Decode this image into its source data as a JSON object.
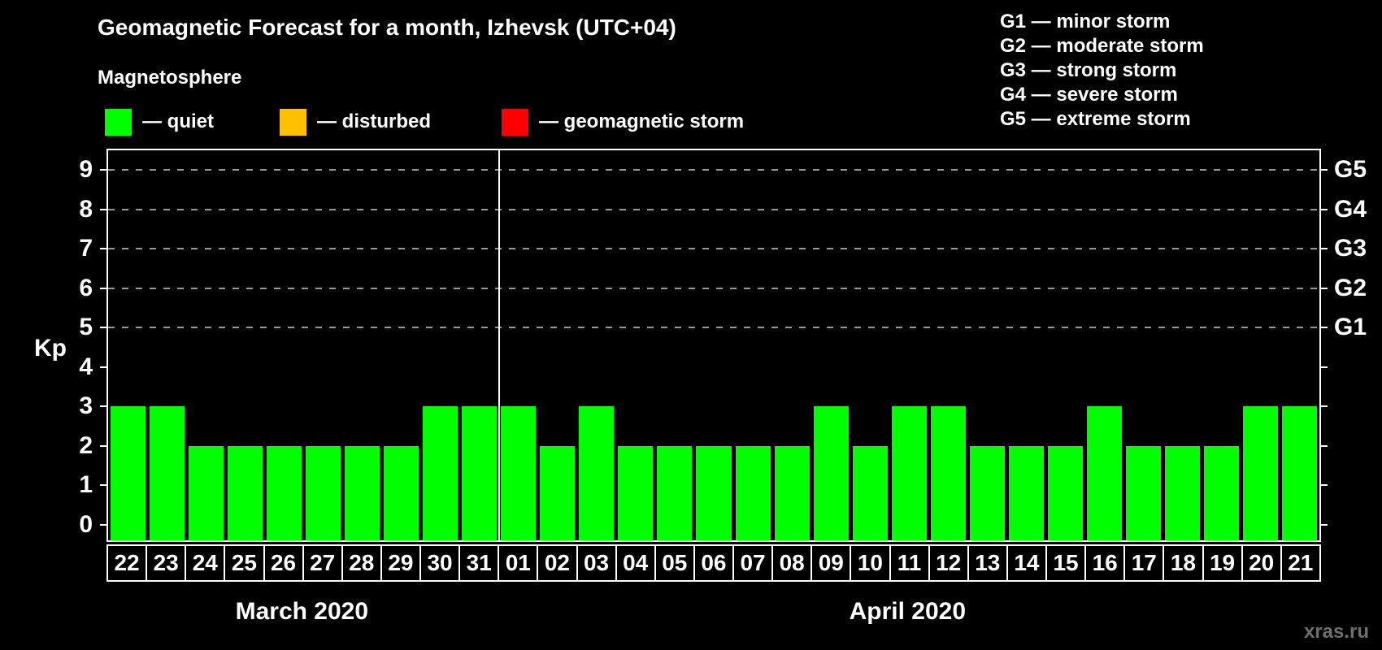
{
  "title": "Geomagnetic Forecast for a month, Izhevsk (UTC+04)",
  "subtitle": "Magnetosphere",
  "legend": {
    "items": [
      {
        "name": "quiet",
        "label": "— quiet",
        "color": "#00ff00"
      },
      {
        "name": "disturbed",
        "label": "— disturbed",
        "color": "#ffc000"
      },
      {
        "name": "geomagnetic-storm",
        "label": "— geomagnetic storm",
        "color": "#ff0000"
      }
    ]
  },
  "storm_scale": {
    "lines": [
      "G1 — minor storm",
      "G2 — moderate storm",
      "G3 — strong storm",
      "G4 — severe storm",
      "G5 — extreme storm"
    ]
  },
  "watermark": "xras.ru",
  "chart_data": {
    "type": "bar",
    "ylabel": "Kp",
    "ylim": [
      -0.4,
      9.5
    ],
    "yticks": [
      0,
      1,
      2,
      3,
      4,
      5,
      6,
      7,
      8,
      9
    ],
    "gridlines_kp": [
      5,
      6,
      7,
      8,
      9
    ],
    "right_labels": [
      {
        "kp": 9,
        "label": "G5"
      },
      {
        "kp": 8,
        "label": "G4"
      },
      {
        "kp": 7,
        "label": "G3"
      },
      {
        "kp": 6,
        "label": "G2"
      },
      {
        "kp": 5,
        "label": "G1"
      }
    ],
    "bar_color": "#00ff00",
    "grid_color": "#999999",
    "sections": [
      {
        "label": "March 2020",
        "days": [
          "22",
          "23",
          "24",
          "25",
          "26",
          "27",
          "28",
          "29",
          "30",
          "31"
        ],
        "values": [
          3,
          3,
          2,
          2,
          2,
          2,
          2,
          2,
          3,
          3
        ]
      },
      {
        "label": "April 2020",
        "days": [
          "01",
          "02",
          "03",
          "04",
          "05",
          "06",
          "07",
          "08",
          "09",
          "10",
          "11",
          "12",
          "13",
          "14",
          "15",
          "16",
          "17",
          "18",
          "19",
          "20",
          "21"
        ],
        "values": [
          3,
          2,
          3,
          2,
          2,
          2,
          2,
          2,
          3,
          2,
          3,
          3,
          2,
          2,
          2,
          3,
          2,
          2,
          2,
          3,
          3
        ]
      }
    ]
  }
}
